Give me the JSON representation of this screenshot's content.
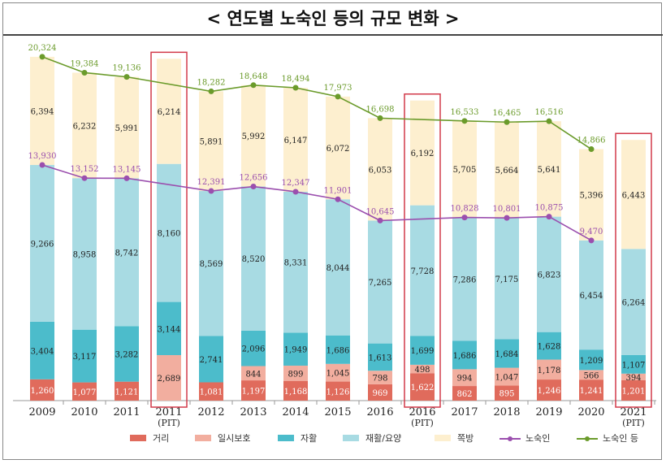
{
  "chart_data": {
    "type": "bar",
    "title": "< 연도별 노숙인 등의 규모 변화 >",
    "stacked": true,
    "categories": [
      "2009",
      "2010",
      "2011",
      "2011\n(PIT)",
      "2012",
      "2013",
      "2014",
      "2015",
      "2016",
      "2016\n(PIT)",
      "2017",
      "2018",
      "2019",
      "2020",
      "2021\n(PIT)"
    ],
    "highlighted": [
      "2011\n(PIT)",
      "2016\n(PIT)",
      "2021\n(PIT)"
    ],
    "series": [
      {
        "name": "거리",
        "color": "#e06b5c",
        "values": [
          1260,
          1077,
          1121,
          null,
          1081,
          1197,
          1168,
          1126,
          969,
          1622,
          862,
          895,
          1246,
          1241,
          1201
        ]
      },
      {
        "name": "일시보호",
        "color": "#f2ae9f",
        "values": [
          null,
          null,
          null,
          2689,
          null,
          844,
          899,
          1045,
          798,
          498,
          994,
          1047,
          1178,
          566,
          394
        ]
      },
      {
        "name": "자활",
        "color": "#4cbccb",
        "values": [
          3404,
          3117,
          3282,
          3144,
          2741,
          2096,
          1949,
          1686,
          1613,
          1699,
          1686,
          1684,
          1628,
          1209,
          1107
        ]
      },
      {
        "name": "재활/요양",
        "color": "#a8dbe3",
        "values": [
          9266,
          8958,
          8742,
          8160,
          8569,
          8520,
          8331,
          8044,
          7265,
          7728,
          7286,
          7175,
          6823,
          6454,
          6264
        ]
      },
      {
        "name": "쪽방",
        "color": "#fdefcf",
        "values": [
          6394,
          6232,
          5991,
          6214,
          5891,
          5992,
          6147,
          6072,
          6053,
          6192,
          5705,
          5664,
          5641,
          5396,
          6443
        ]
      }
    ],
    "lines": [
      {
        "name": "노숙인",
        "color": "#9b4fae",
        "values": [
          13930,
          13152,
          13145,
          null,
          12391,
          12656,
          12347,
          11901,
          10645,
          null,
          10828,
          10801,
          10875,
          9470,
          null
        ]
      },
      {
        "name": "노숙인 등",
        "color": "#6b9b2b",
        "values": [
          20324,
          19384,
          19136,
          null,
          18282,
          18648,
          18494,
          17973,
          16698,
          null,
          16533,
          16465,
          16516,
          14866,
          null
        ]
      }
    ],
    "ylim": [
      0,
      20800
    ],
    "grid": false,
    "legend": "bottom"
  }
}
